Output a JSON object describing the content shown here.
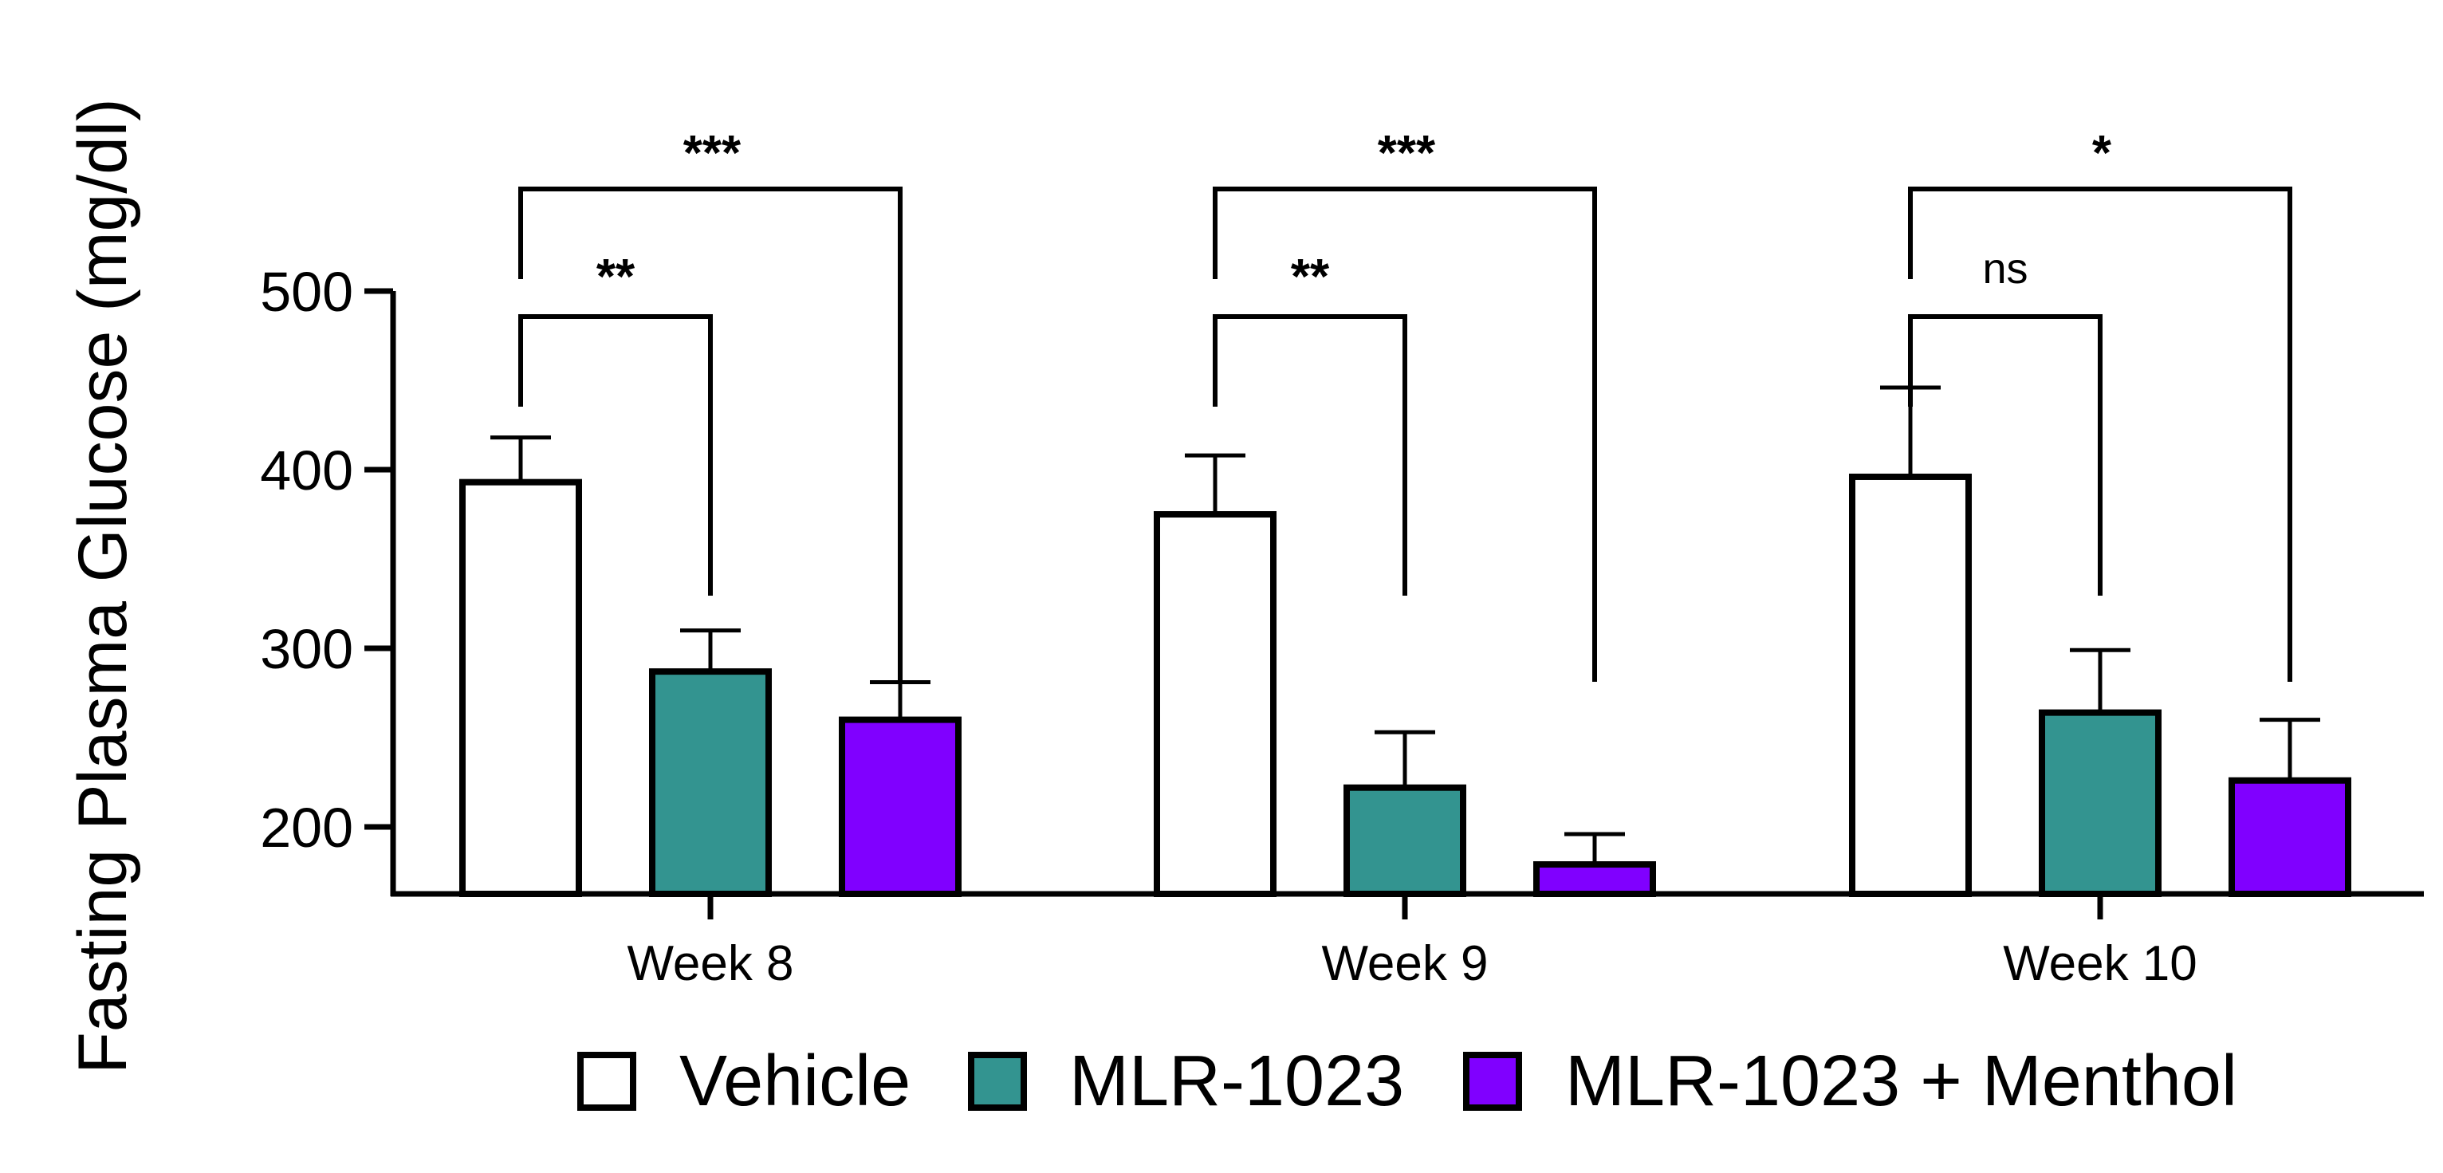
{
  "chart_data": {
    "type": "bar",
    "title": "",
    "xlabel": "",
    "ylabel": "Fasting Plasma Glucose (mg/dl)",
    "ylim": [
      160,
      500
    ],
    "yticks": [
      200,
      300,
      400,
      500
    ],
    "yticks_labels": [
      "200",
      "300",
      "400",
      "500"
    ],
    "categories": [
      "Week 8",
      "Week 9",
      "Week 10"
    ],
    "series": [
      {
        "name": "Vehicle",
        "color": "#ffffff",
        "values": [
          393,
          375,
          396
        ],
        "errors": [
          25,
          33,
          50
        ]
      },
      {
        "name": "MLR-1023",
        "color": "#339490",
        "values": [
          287,
          222,
          264
        ],
        "errors": [
          23,
          31,
          35
        ]
      },
      {
        "name": "MLR-1023 + Menthol",
        "color": "#8000ff",
        "values": [
          260,
          179,
          226
        ],
        "errors": [
          21,
          17,
          34
        ]
      }
    ],
    "significance": [
      {
        "category": 0,
        "from_series": 0,
        "to_series": 1,
        "label": "**"
      },
      {
        "category": 0,
        "from_series": 0,
        "to_series": 2,
        "label": "***"
      },
      {
        "category": 1,
        "from_series": 0,
        "to_series": 1,
        "label": "**"
      },
      {
        "category": 1,
        "from_series": 0,
        "to_series": 2,
        "label": "***"
      },
      {
        "category": 2,
        "from_series": 0,
        "to_series": 1,
        "label": "ns"
      },
      {
        "category": 2,
        "from_series": 0,
        "to_series": 2,
        "label": "*"
      }
    ],
    "legend": {
      "position": "bottom"
    }
  }
}
